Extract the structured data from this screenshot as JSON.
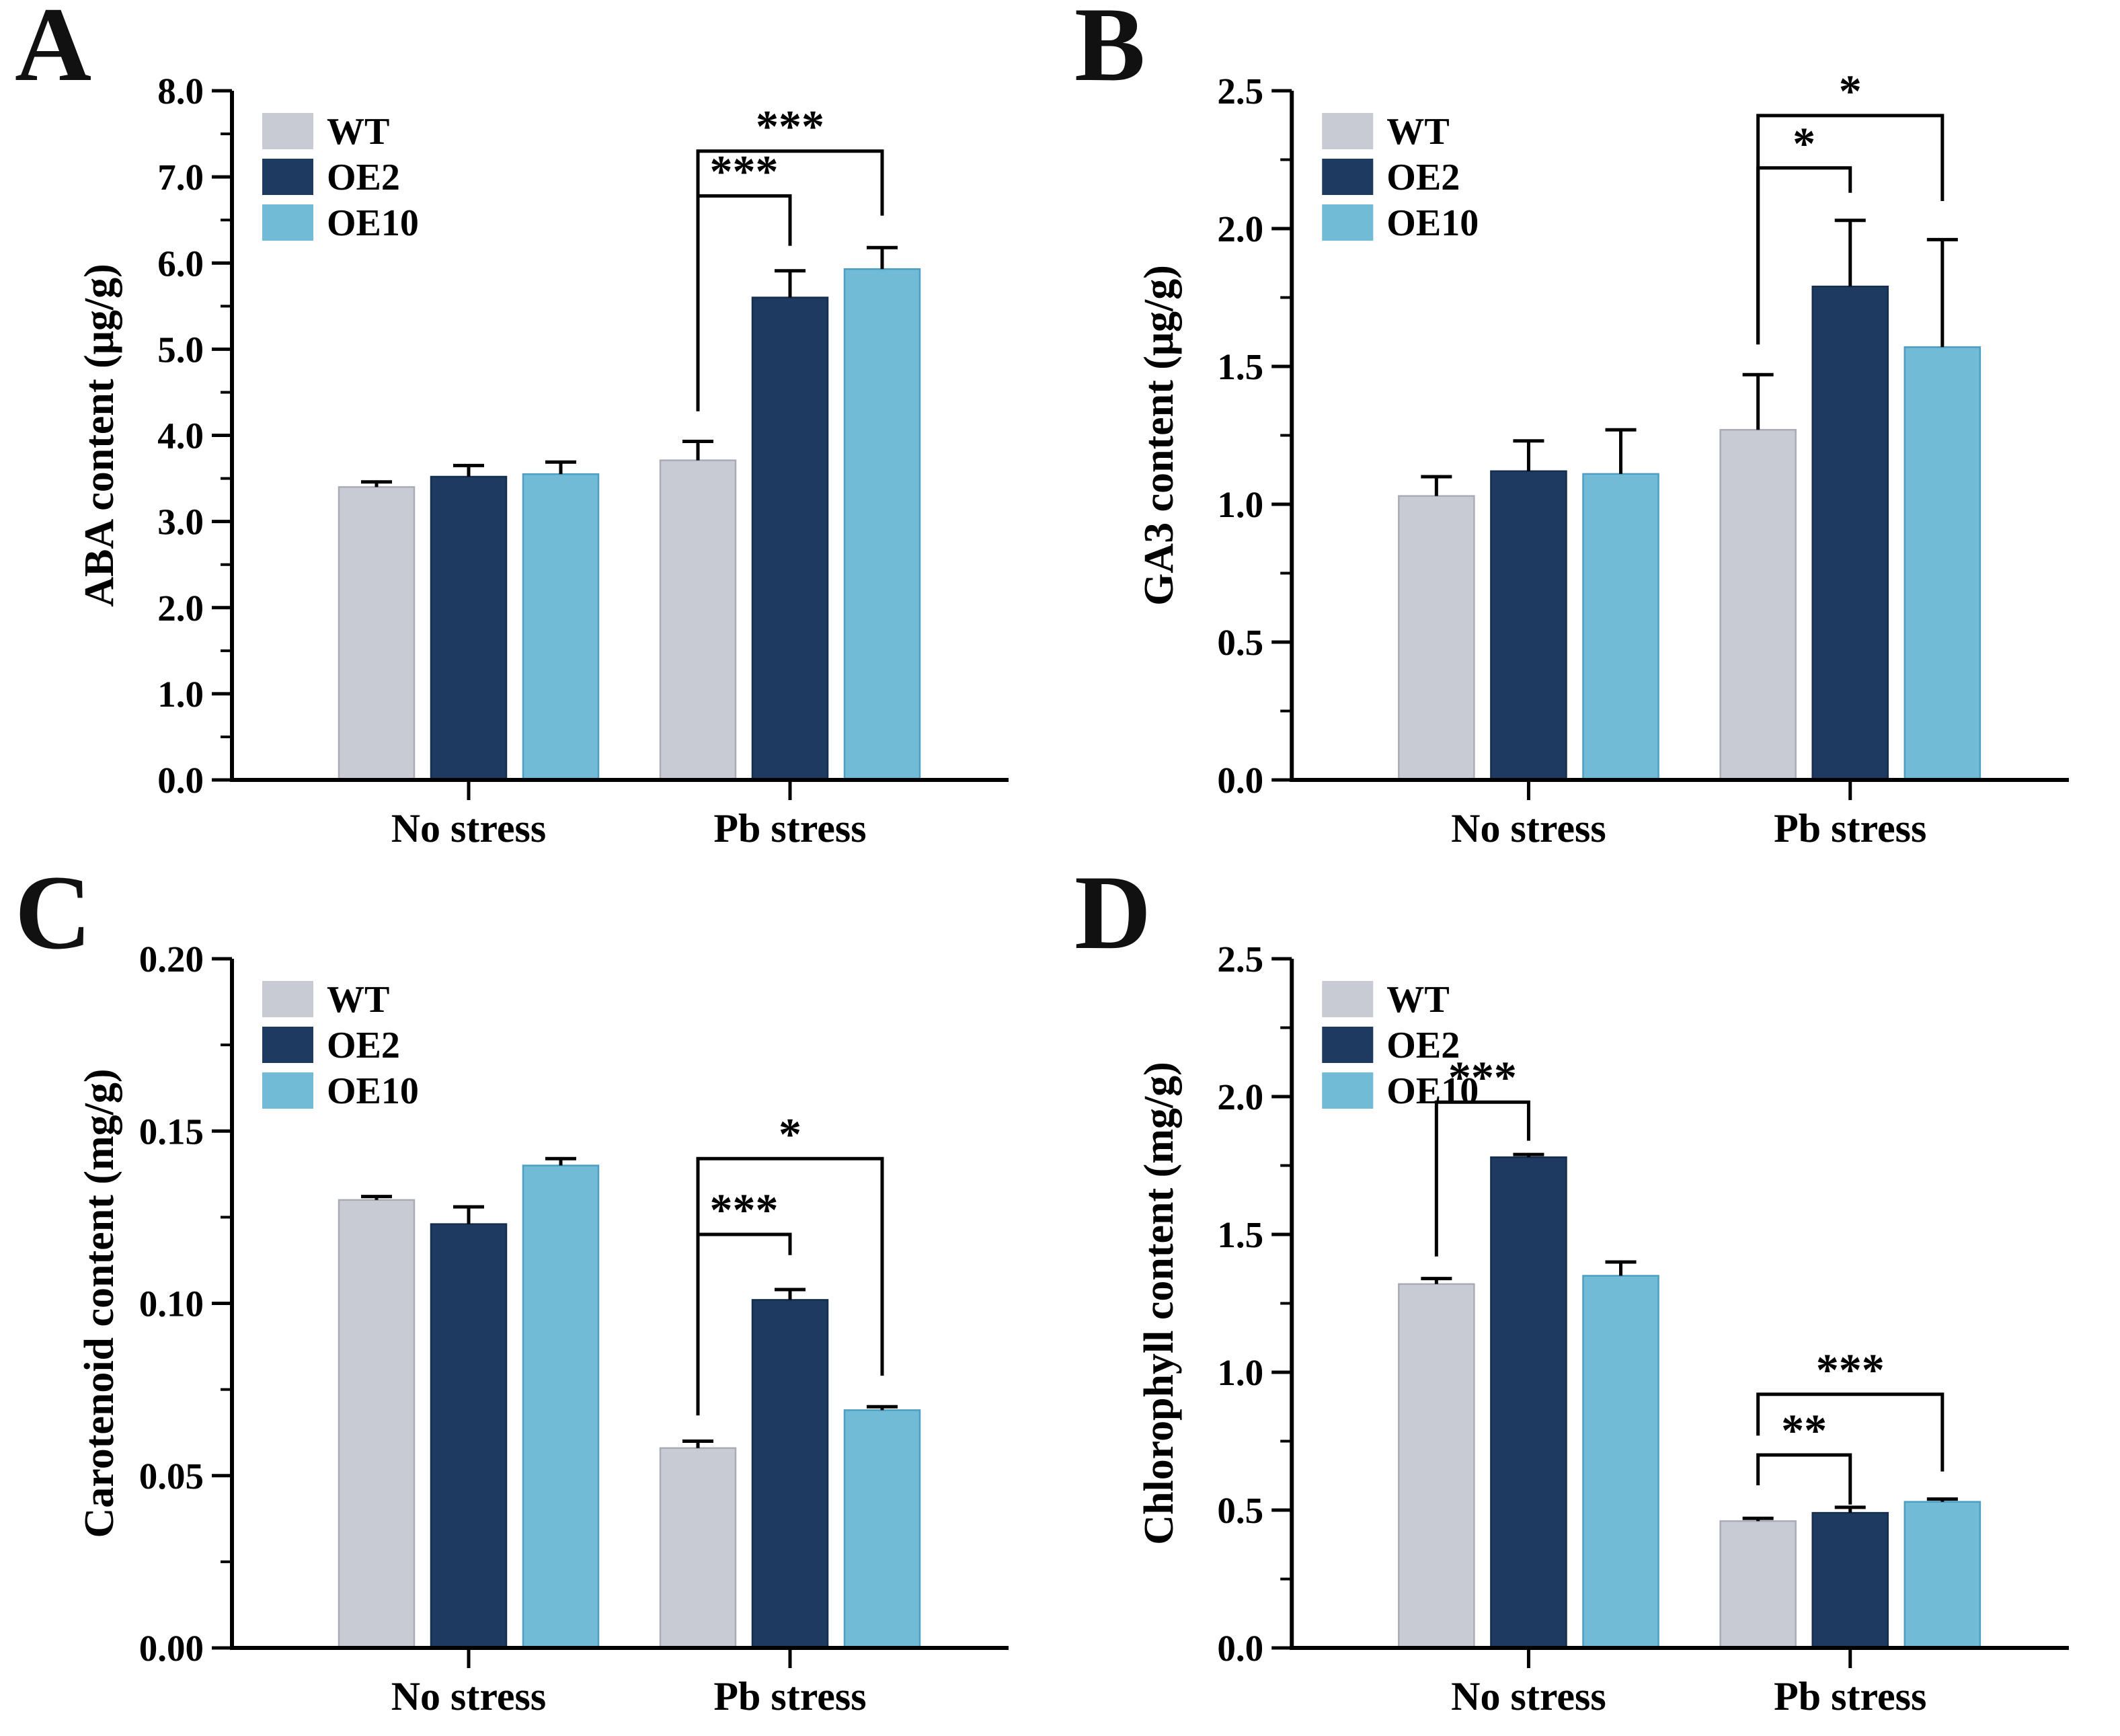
{
  "figure": {
    "background": "#ffffff",
    "series_names": [
      "WT",
      "OE2",
      "OE10"
    ],
    "colors": {
      "WT": "#c9cbd4",
      "WT_edge": "#a9abb6",
      "OE2": "#1e3a60",
      "OE2_edge": "#152e4e",
      "OE10": "#72bbd7",
      "OE10_edge": "#4c9fc2",
      "axis": "#000000",
      "text": "#000000"
    }
  },
  "chart_data": [
    {
      "panel": "A",
      "type": "bar",
      "ylabel": "ABA content (μg/g)",
      "categories": [
        "No stress",
        "Pb stress"
      ],
      "ylim": [
        0,
        8
      ],
      "ytick_step": 1.0,
      "tick_decimals": 1,
      "grid": false,
      "legend_position": "top-left-inside",
      "legend": [
        "WT",
        "OE2",
        "OE10"
      ],
      "series": [
        {
          "name": "WT",
          "values": [
            3.4,
            3.71
          ],
          "errors": [
            0.06,
            0.22
          ]
        },
        {
          "name": "OE2",
          "values": [
            3.52,
            5.6
          ],
          "errors": [
            0.13,
            0.31
          ]
        },
        {
          "name": "OE10",
          "values": [
            3.55,
            5.93
          ],
          "errors": [
            0.14,
            0.25
          ]
        }
      ],
      "significance": [
        {
          "cat": 1,
          "a": 0,
          "b": 1,
          "label": "***",
          "top": 6.78,
          "a_end": 4.28,
          "b_end": 6.2
        },
        {
          "cat": 1,
          "a": 0,
          "b": 2,
          "label": "***",
          "top": 7.3,
          "a_end": 4.28,
          "b_end": 6.55
        }
      ]
    },
    {
      "panel": "B",
      "type": "bar",
      "ylabel": "GA3 content (μg/g)",
      "categories": [
        "No stress",
        "Pb stress"
      ],
      "ylim": [
        0,
        2.5
      ],
      "ytick_step": 0.5,
      "tick_decimals": 1,
      "grid": false,
      "legend_position": "top-left-inside",
      "legend": [
        "WT",
        "OE2",
        "OE10"
      ],
      "series": [
        {
          "name": "WT",
          "values": [
            1.03,
            1.27
          ],
          "errors": [
            0.07,
            0.2
          ]
        },
        {
          "name": "OE2",
          "values": [
            1.12,
            1.79
          ],
          "errors": [
            0.11,
            0.24
          ]
        },
        {
          "name": "OE10",
          "values": [
            1.11,
            1.57
          ],
          "errors": [
            0.16,
            0.39
          ]
        }
      ],
      "significance": [
        {
          "cat": 1,
          "a": 0,
          "b": 1,
          "label": "*",
          "top": 2.22,
          "a_end": 1.58,
          "b_end": 2.13
        },
        {
          "cat": 1,
          "a": 0,
          "b": 2,
          "label": "*",
          "top": 2.41,
          "a_end": 1.58,
          "b_end": 2.1
        }
      ]
    },
    {
      "panel": "C",
      "type": "bar",
      "ylabel": "Carotenoid content (mg/g)",
      "categories": [
        "No stress",
        "Pb stress"
      ],
      "ylim": [
        0,
        0.2
      ],
      "ytick_step": 0.05,
      "tick_decimals": 2,
      "grid": false,
      "legend_position": "top-left-inside",
      "legend": [
        "WT",
        "OE2",
        "OE10"
      ],
      "series": [
        {
          "name": "WT",
          "values": [
            0.13,
            0.058
          ],
          "errors": [
            0.001,
            0.002
          ]
        },
        {
          "name": "OE2",
          "values": [
            0.123,
            0.101
          ],
          "errors": [
            0.005,
            0.003
          ]
        },
        {
          "name": "OE10",
          "values": [
            0.14,
            0.069
          ],
          "errors": [
            0.002,
            0.001
          ]
        }
      ],
      "significance": [
        {
          "cat": 1,
          "a": 0,
          "b": 1,
          "label": "***",
          "top": 0.12,
          "a_end": 0.0675,
          "b_end": 0.114
        },
        {
          "cat": 1,
          "a": 0,
          "b": 2,
          "label": "*",
          "top": 0.142,
          "a_end": 0.0675,
          "b_end": 0.079
        }
      ]
    },
    {
      "panel": "D",
      "type": "bar",
      "ylabel": "Chlorophyll content (mg/g)",
      "categories": [
        "No stress",
        "Pb stress"
      ],
      "ylim": [
        0,
        2.5
      ],
      "ytick_step": 0.5,
      "tick_decimals": 1,
      "grid": false,
      "legend_position": "top-left-inside",
      "legend": [
        "WT",
        "OE2",
        "OE10"
      ],
      "series": [
        {
          "name": "WT",
          "values": [
            1.32,
            0.46
          ],
          "errors": [
            0.02,
            0.01
          ]
        },
        {
          "name": "OE2",
          "values": [
            1.78,
            0.49
          ],
          "errors": [
            0.01,
            0.02
          ]
        },
        {
          "name": "OE10",
          "values": [
            1.35,
            0.53
          ],
          "errors": [
            0.05,
            0.01
          ]
        }
      ],
      "significance": [
        {
          "cat": 0,
          "a": 0,
          "b": 1,
          "label": "***",
          "top": 1.98,
          "a_end": 1.42,
          "b_end": 1.84
        },
        {
          "cat": 1,
          "a": 0,
          "b": 1,
          "label": "**",
          "top": 0.7,
          "a_end": 0.59,
          "b_end": 0.52
        },
        {
          "cat": 1,
          "a": 0,
          "b": 2,
          "label": "***",
          "top": 0.92,
          "a_end": 0.77,
          "b_end": 0.64
        }
      ]
    }
  ]
}
